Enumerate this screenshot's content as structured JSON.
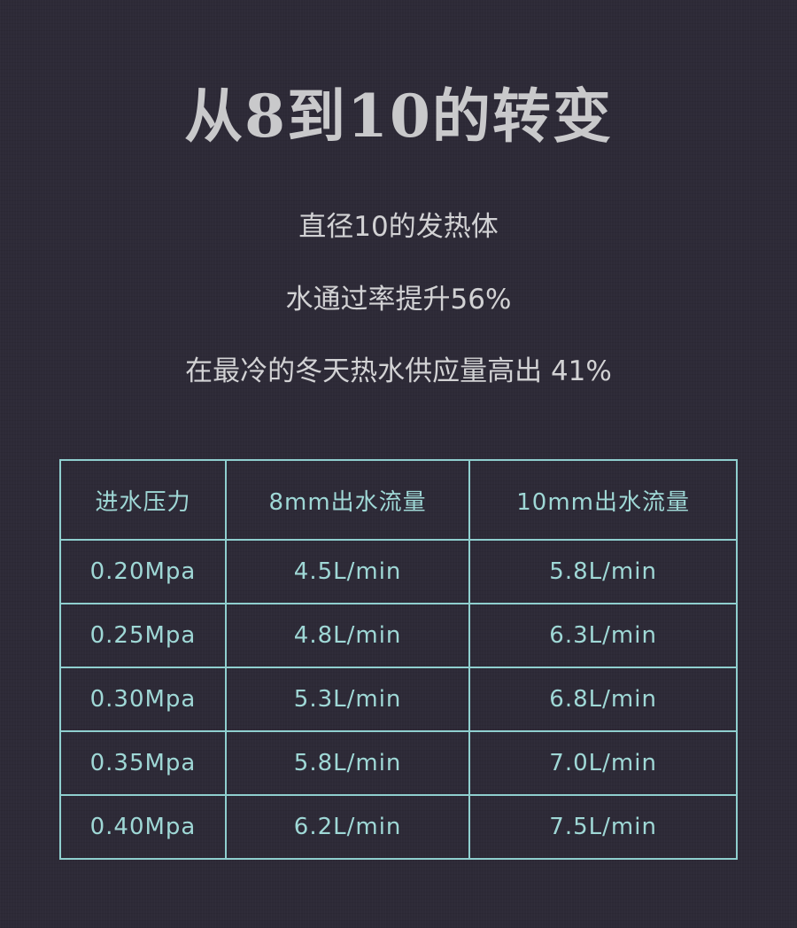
{
  "title": "从8到10的转变",
  "lines": [
    "直径10的发热体",
    "水通过率提升56%",
    "在最冷的冬天热水供应量高出 41%"
  ],
  "colors": {
    "background": "#2d2a37",
    "table_accent": "#9fd8d6",
    "title": "#c9c9cb"
  },
  "table": {
    "headers": [
      "进水压力",
      "8mm出水流量",
      "10mm出水流量"
    ],
    "rows": [
      [
        "0.20Mpa",
        "4.5L/min",
        "5.8L/min"
      ],
      [
        "0.25Mpa",
        "4.8L/min",
        "6.3L/min"
      ],
      [
        "0.30Mpa",
        "5.3L/min",
        "6.8L/min"
      ],
      [
        "0.35Mpa",
        "5.8L/min",
        "7.0L/min"
      ],
      [
        "0.40Mpa",
        "6.2L/min",
        "7.5L/min"
      ]
    ]
  }
}
